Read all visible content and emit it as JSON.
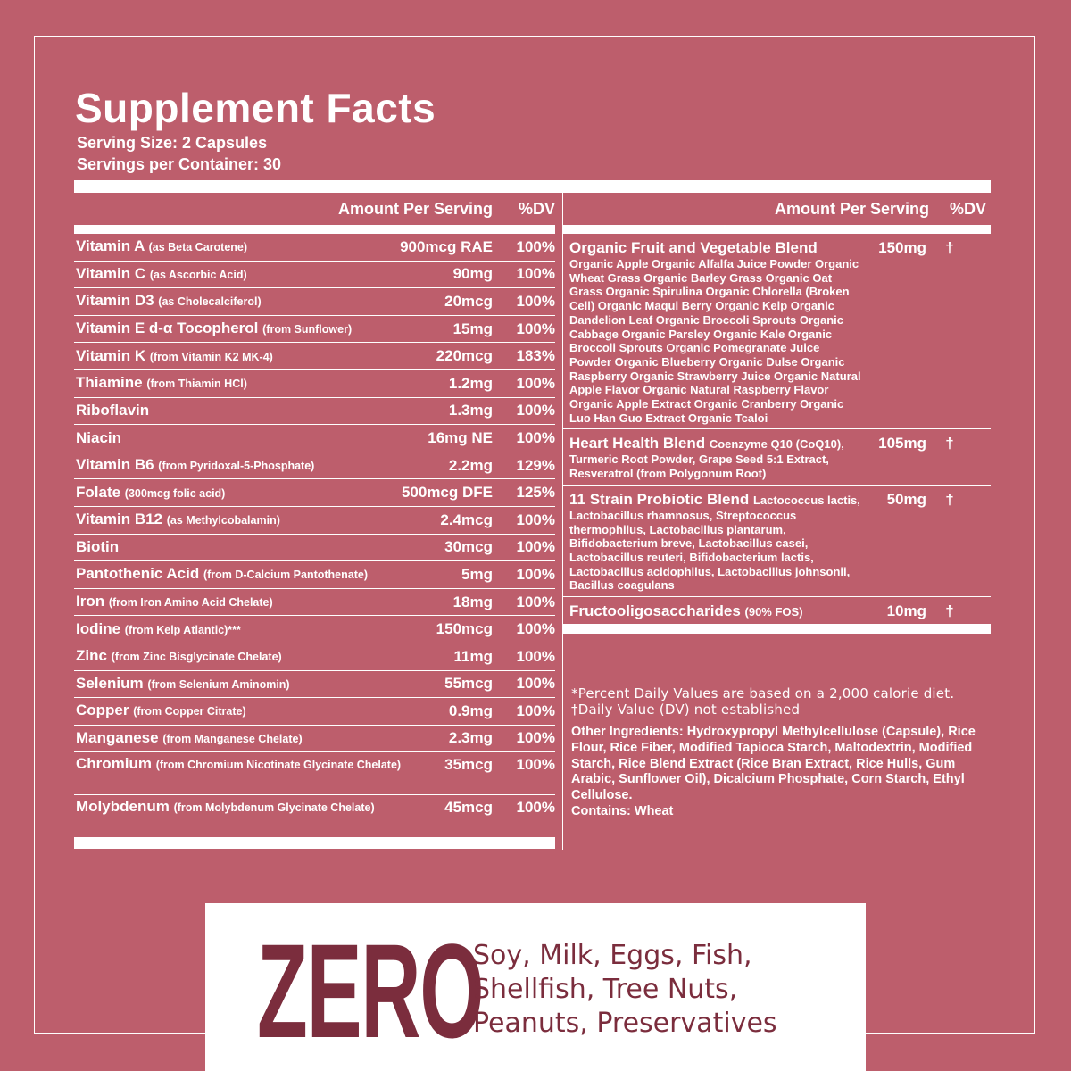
{
  "header": {
    "title": "Supplement Facts",
    "serving_size": "Serving Size: 2 Capsules",
    "servings_per_container": "Servings per Container: 30"
  },
  "table": {
    "left_headers": [
      "Amount Per Serving",
      "%DV"
    ],
    "left_rows": [
      {
        "name": "Vitamin A",
        "note": "(as Beta Carotene)",
        "amount": "900mcg RAE",
        "dv": "100%"
      },
      {
        "name": "Vitamin C",
        "note": "(as Ascorbic Acid)",
        "amount": "90mg",
        "dv": "100%"
      },
      {
        "name": "Vitamin D3",
        "note": "(as Cholecalciferol)",
        "amount": "20mcg",
        "dv": "100%"
      },
      {
        "name": "Vitamin E d-α Tocopherol",
        "note": "(from Sunflower)",
        "amount": "15mg",
        "dv": "100%"
      },
      {
        "name": "Vitamin K",
        "note": "(from Vitamin K2 MK-4)",
        "amount": "220mcg",
        "dv": "183%"
      },
      {
        "name": "Thiamine",
        "note": "(from Thiamin HCl)",
        "amount": "1.2mg",
        "dv": "100%"
      },
      {
        "name": "Riboflavin",
        "amount": "1.3mg",
        "dv": "100%"
      },
      {
        "name": "Niacin",
        "amount": "16mg NE",
        "dv": "100%"
      },
      {
        "name": "Vitamin B6",
        "note": "(from Pyridoxal-5-Phosphate)",
        "amount": "2.2mg",
        "dv": "129%"
      },
      {
        "name": "Folate",
        "note": "(300mcg folic acid)",
        "amount": "500mcg DFE",
        "dv": "125%"
      },
      {
        "name": "Vitamin B12",
        "note": "(as Methylcobalamin)",
        "amount": "2.4mcg",
        "dv": "100%"
      },
      {
        "name": "Biotin",
        "amount": "30mcg",
        "dv": "100%"
      },
      {
        "name": "Pantothenic Acid",
        "note": "(from D-Calcium Pantothenate)",
        "amount": "5mg",
        "dv": "100%"
      },
      {
        "name": "Iron",
        "note": "(from Iron Amino Acid Chelate)",
        "amount": "18mg",
        "dv": "100%"
      },
      {
        "name": "Iodine",
        "note": "(from Kelp Atlantic)***",
        "amount": "150mcg",
        "dv": "100%"
      },
      {
        "name": "Zinc",
        "note": "(from Zinc Bisglycinate Chelate)",
        "amount": "11mg",
        "dv": "100%"
      },
      {
        "name": "Selenium",
        "note": "(from Selenium Aminomin)",
        "amount": "55mcg",
        "dv": "100%"
      },
      {
        "name": "Copper",
        "note": "(from Copper Citrate)",
        "amount": "0.9mg",
        "dv": "100%"
      },
      {
        "name": "Manganese",
        "note": "(from Manganese Chelate)",
        "amount": "2.3mg",
        "dv": "100%"
      },
      {
        "name": "Chromium",
        "note": "(from Chromium Nicotinate Glycinate Chelate)",
        "amount": "35mcg",
        "dv": "100%"
      },
      {
        "name": "Molybdenum",
        "note": "(from Molybdenum Glycinate Chelate)",
        "amount": "45mcg",
        "dv": "100%"
      }
    ],
    "right_headers": [
      "Amount Per Serving",
      "%DV"
    ],
    "right_rows": [
      {
        "name": "Organic Fruit and Vegetable Blend",
        "description": "Organic Apple Organic Alfalfa Juice Powder Organic Wheat Grass Organic Barley Grass Organic Oat Grass Organic Spirulina Organic Chlorella (Broken Cell) Organic Maqui Berry Organic Kelp Organic Dandelion Leaf Organic Broccoli Sprouts Organic Cabbage Organic Parsley Organic Kale Organic Broccoli Sprouts Organic Pomegranate Juice Powder Organic Blueberry Organic Dulse Organic Raspberry Organic Strawberry Juice Organic Natural Apple Flavor Organic Natural Raspberry Flavor Organic Apple Extract Organic Cranberry Organic Luo Han Guo Extract Organic Tcaloi",
        "amount": "150mg",
        "dv": "†"
      },
      {
        "name": "Heart Health Blend",
        "description": "Coenzyme Q10 (CoQ10), Turmeric Root Powder, Grape Seed 5:1 Extract, Resveratrol (from Polygonum Root)",
        "amount": "105mg",
        "dv": "†"
      },
      {
        "name": "11 Strain Probiotic Blend",
        "description": "Lactococcus lactis, Lactobacillus rhamnosus, Streptococcus thermophilus, Lactobacillus plantarum, Bifidobacterium breve, Lactobacillus casei, Lactobacillus reuteri, Bifidobacterium lactis, Lactobacillus acidophilus, Lactobacillus johnsonii, Bacillus coagulans",
        "amount": "50mg",
        "dv": "†"
      },
      {
        "name": "Fructooligosaccharides",
        "note": "(90% FOS)",
        "amount": "10mg",
        "dv": "†"
      }
    ]
  },
  "footnotes": [
    "*Percent Daily Values are based on a 2,000 calorie diet.",
    "†Daily Value (DV) not established"
  ],
  "other_ingredients": "Other Ingredients: Hydroxypropyl Methylcellulose (Capsule), Rice Flour, Rice Fiber, Modified Tapioca Starch, Maltodextrin, Modified Starch, Rice Blend Extract (Rice Bran Extract, Rice Hulls, Gum Arabic, Sunflower Oil), Dicalcium Phosphate, Corn Starch, Ethyl Cellulose.",
  "contains": "Contains: Wheat",
  "banner": {
    "headline": "ZERO",
    "lines": [
      "Soy, Milk, Eggs, Fish,",
      "Shellfish, Tree Nuts,",
      "Peanuts, Preservatives"
    ]
  }
}
